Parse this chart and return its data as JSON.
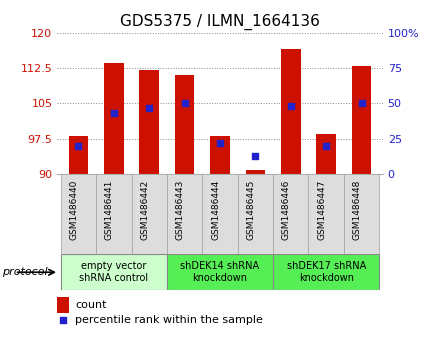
{
  "title": "GDS5375 / ILMN_1664136",
  "samples": [
    "GSM1486440",
    "GSM1486441",
    "GSM1486442",
    "GSM1486443",
    "GSM1486444",
    "GSM1486445",
    "GSM1486446",
    "GSM1486447",
    "GSM1486448"
  ],
  "count_values": [
    98.0,
    113.5,
    112.0,
    111.0,
    98.0,
    91.0,
    116.5,
    98.5,
    113.0
  ],
  "percentile_values": [
    20,
    43,
    47,
    50,
    22,
    13,
    48,
    20,
    50
  ],
  "ylim": [
    90,
    120
  ],
  "yticks": [
    90,
    97.5,
    105,
    112.5,
    120
  ],
  "ytick_labels": [
    "90",
    "97.5",
    "105",
    "112.5",
    "120"
  ],
  "y2lim": [
    0,
    100
  ],
  "y2ticks": [
    0,
    25,
    50,
    75,
    100
  ],
  "y2tick_labels": [
    "0",
    "25",
    "50",
    "75",
    "100%"
  ],
  "bar_color": "#cc1100",
  "dot_color": "#2222cc",
  "bar_width": 0.55,
  "groups": [
    {
      "label": "empty vector\nshRNA control",
      "start": 0,
      "end": 3,
      "color": "#ccffcc"
    },
    {
      "label": "shDEK14 shRNA\nknockdown",
      "start": 3,
      "end": 6,
      "color": "#55ee55"
    },
    {
      "label": "shDEK17 shRNA\nknockdown",
      "start": 6,
      "end": 9,
      "color": "#55ee55"
    }
  ],
  "protocol_label": "protocol",
  "legend_count_label": "count",
  "legend_pct_label": "percentile rank within the sample",
  "title_fontsize": 11,
  "axis_color_left": "#cc1100",
  "axis_color_right": "#2222cc",
  "grid_color": "#888888",
  "label_bg_color": "#dddddd"
}
